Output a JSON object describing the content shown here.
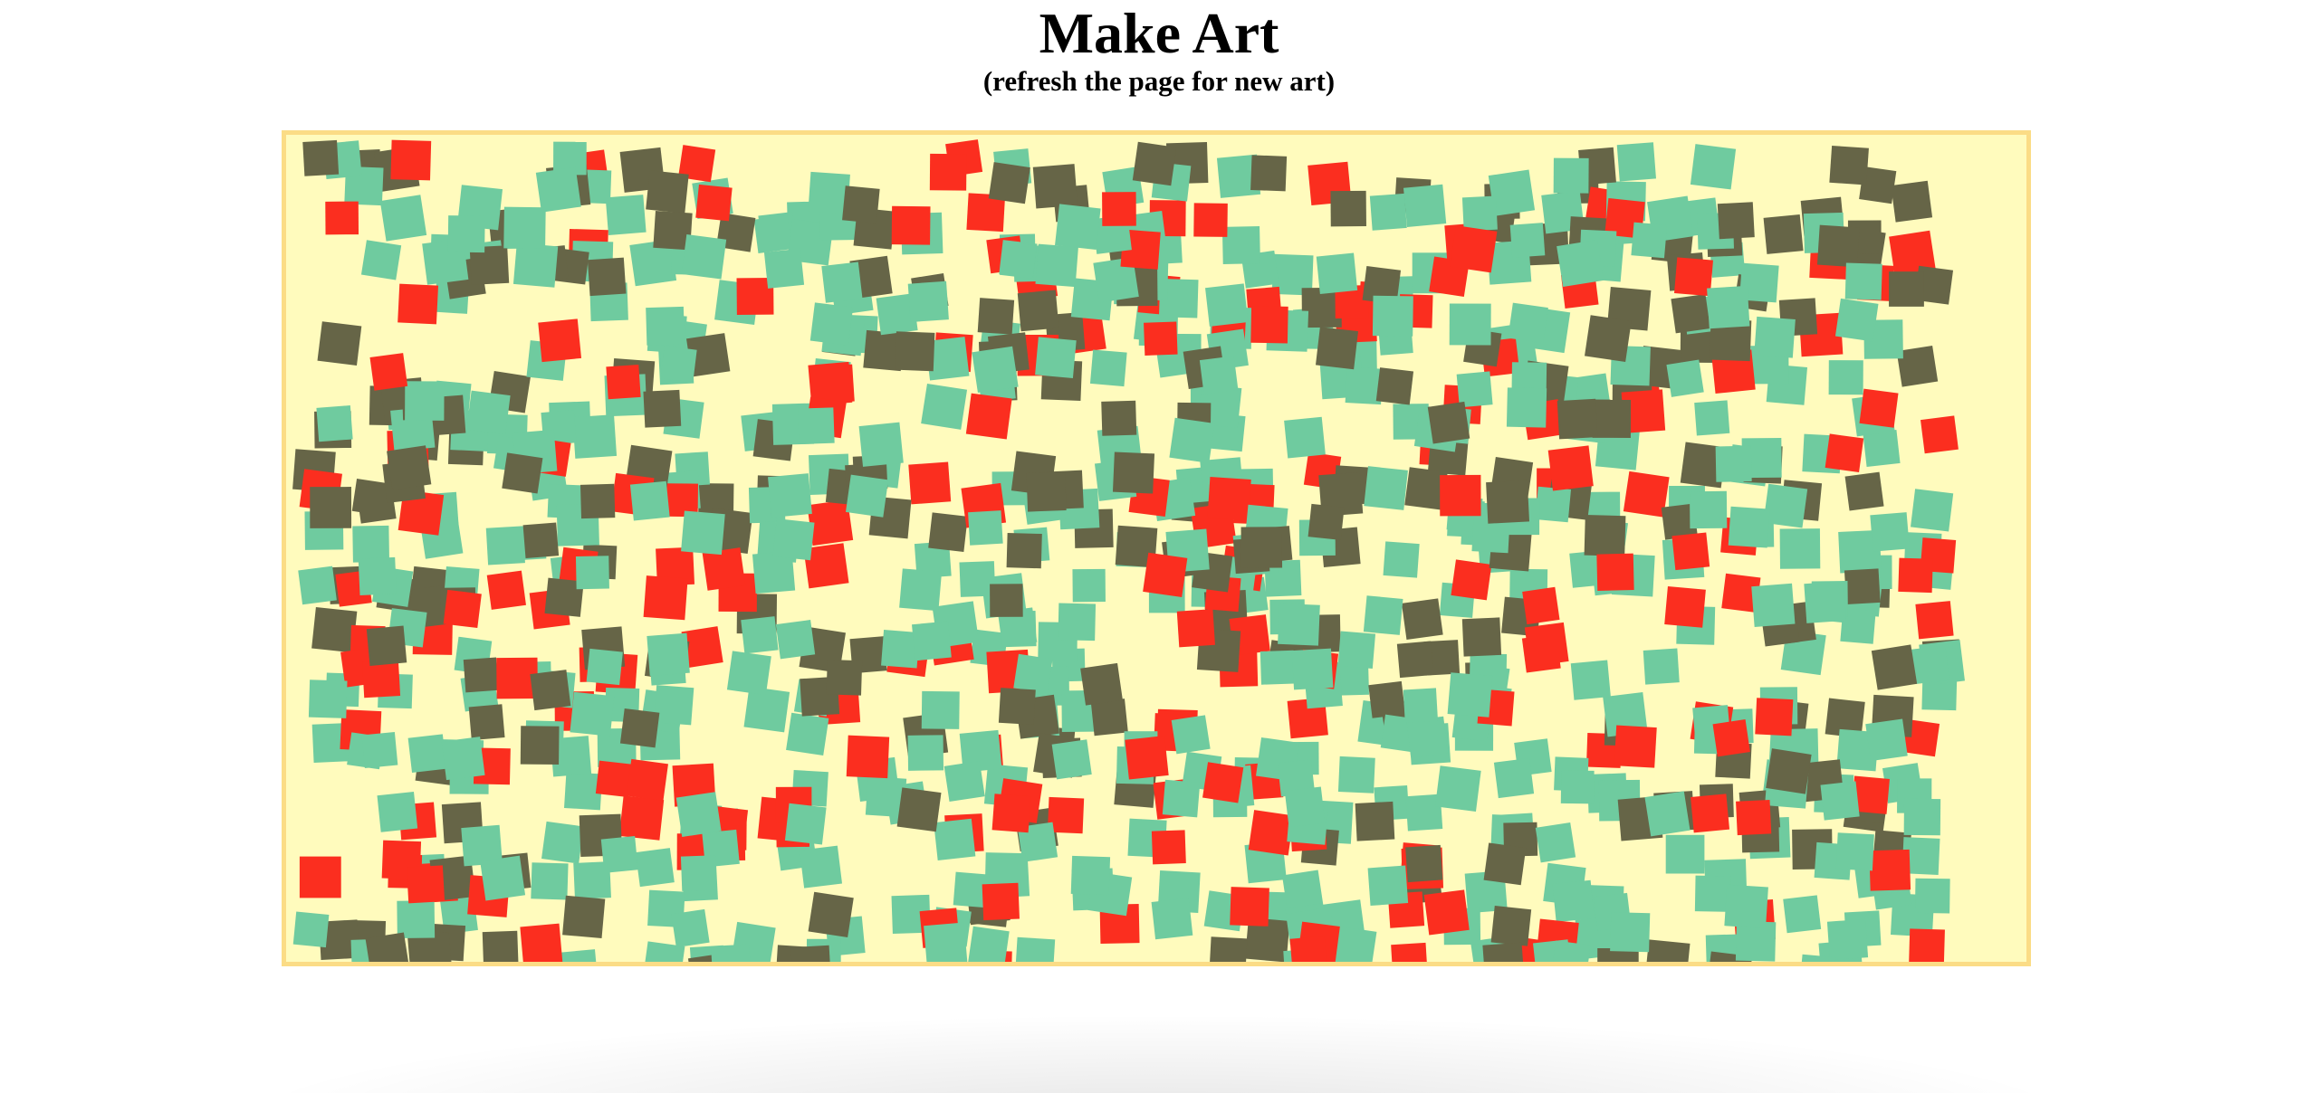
{
  "page": {
    "title": "Make Art",
    "subtitle": "(refresh the page for new art)"
  },
  "art": {
    "background_color": "#fffbbd",
    "border_color": "#fbdc86",
    "square_colors": [
      "#6fcb9f",
      "#666547",
      "#fb2e1f"
    ],
    "color_names": [
      "seafoam",
      "olive-gray",
      "red"
    ]
  }
}
